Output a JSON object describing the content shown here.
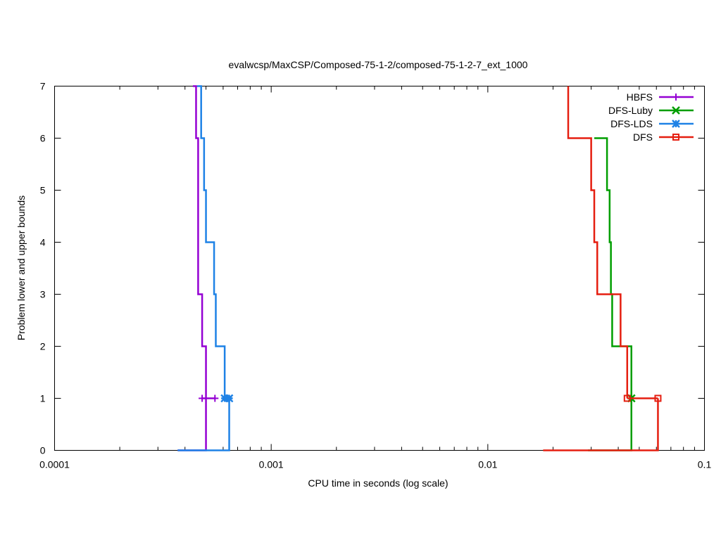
{
  "chart_data": {
    "type": "line",
    "title": "evalwcsp/MaxCSP/Composed-75-1-2/composed-75-1-2-7_ext_1000",
    "xlabel": "CPU time in seconds (log scale)",
    "ylabel": "Problem lower and upper bounds",
    "xscale": "log",
    "xlim": [
      0.0001,
      0.1
    ],
    "ylim": [
      0,
      7
    ],
    "xticks": [
      {
        "value": 0.0001,
        "label": "0.0001"
      },
      {
        "value": 0.001,
        "label": "0.001"
      },
      {
        "value": 0.01,
        "label": "0.01"
      },
      {
        "value": 0.1,
        "label": "0.1"
      }
    ],
    "yticks": [
      {
        "value": 0,
        "label": "0"
      },
      {
        "value": 1,
        "label": "1"
      },
      {
        "value": 2,
        "label": "2"
      },
      {
        "value": 3,
        "label": "3"
      },
      {
        "value": 4,
        "label": "4"
      },
      {
        "value": 5,
        "label": "5"
      },
      {
        "value": 6,
        "label": "6"
      },
      {
        "value": 7,
        "label": "7"
      }
    ],
    "legend_position": "top-right",
    "series": [
      {
        "name": "HBFS",
        "color": "#9400d3",
        "marker": "plus",
        "upper": [
          [
            0.000435,
            7
          ],
          [
            0.00045,
            6
          ],
          [
            0.00046,
            3
          ],
          [
            0.00048,
            2
          ],
          [
            0.0005,
            1
          ]
        ],
        "lower": [
          [
            0.00037,
            0
          ],
          [
            0.0005,
            0
          ],
          [
            0.0005,
            1
          ]
        ],
        "markers": [
          [
            0.00048,
            1
          ],
          [
            0.00055,
            1
          ]
        ]
      },
      {
        "name": "DFS-Luby",
        "color": "#009e00",
        "marker": "x",
        "upper": [
          [
            0.031,
            6
          ],
          [
            0.0355,
            5
          ],
          [
            0.0365,
            4
          ],
          [
            0.037,
            3
          ],
          [
            0.0375,
            2
          ],
          [
            0.046,
            1
          ]
        ],
        "lower": [
          [
            0.029,
            0
          ],
          [
            0.046,
            0
          ],
          [
            0.046,
            1
          ]
        ],
        "markers": [
          [
            0.046,
            1
          ]
        ]
      },
      {
        "name": "DFS-LDS",
        "color": "#1e82e6",
        "marker": "star",
        "upper": [
          [
            0.000455,
            7
          ],
          [
            0.000475,
            6
          ],
          [
            0.00049,
            5
          ],
          [
            0.0005,
            4
          ],
          [
            0.000545,
            3
          ],
          [
            0.000555,
            2
          ],
          [
            0.00061,
            1
          ]
        ],
        "lower": [
          [
            0.00037,
            0
          ],
          [
            0.00064,
            0
          ],
          [
            0.00064,
            1
          ]
        ],
        "markers": [
          [
            0.00061,
            1
          ],
          [
            0.00064,
            1
          ]
        ]
      },
      {
        "name": "DFS",
        "color": "#e51e10",
        "marker": "square",
        "upper": [
          [
            0.0235,
            7
          ],
          [
            0.0235,
            6
          ],
          [
            0.03,
            5
          ],
          [
            0.031,
            4
          ],
          [
            0.032,
            3
          ],
          [
            0.041,
            2
          ],
          [
            0.044,
            1
          ]
        ],
        "lower": [
          [
            0.018,
            0
          ],
          [
            0.061,
            0
          ],
          [
            0.061,
            1
          ]
        ],
        "markers": [
          [
            0.044,
            1
          ],
          [
            0.061,
            1
          ]
        ]
      }
    ]
  }
}
